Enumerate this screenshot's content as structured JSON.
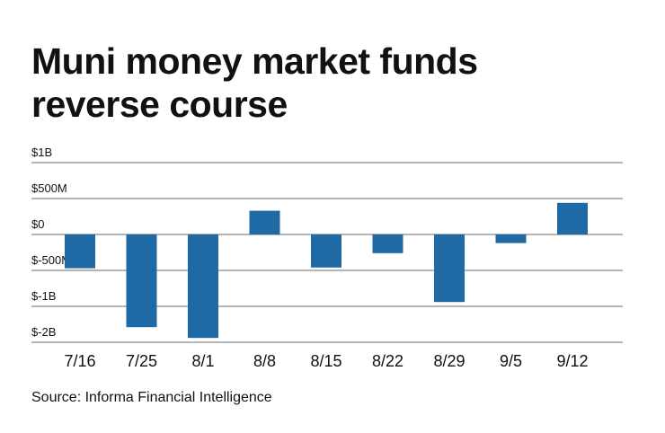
{
  "title_lines": [
    "Muni money market funds",
    "reverse course"
  ],
  "source": "Source: Informa Financial Intelligence",
  "chart_data": {
    "type": "bar",
    "title": "Muni money market funds reverse course",
    "categories": [
      "7/16",
      "7/25",
      "8/1",
      "8/8",
      "8/15",
      "8/22",
      "8/29",
      "9/5",
      "9/12"
    ],
    "y_tick_labels": [
      "$1B",
      "$500M",
      "$0",
      "$-500M",
      "$-1B",
      "$-2B"
    ],
    "y_tick_note": "ticks are evenly spaced; value units follow gridlines where 1 step = 500M",
    "series": [
      {
        "values": [
          -470,
          -1290,
          -1440,
          330,
          -460,
          -260,
          -940,
          -120,
          440
        ]
      }
    ],
    "ylim": [
      -1500,
      1000
    ],
    "grid": true,
    "bar_color": "#1f6aa5",
    "grid_color": "#6b6b6b"
  }
}
